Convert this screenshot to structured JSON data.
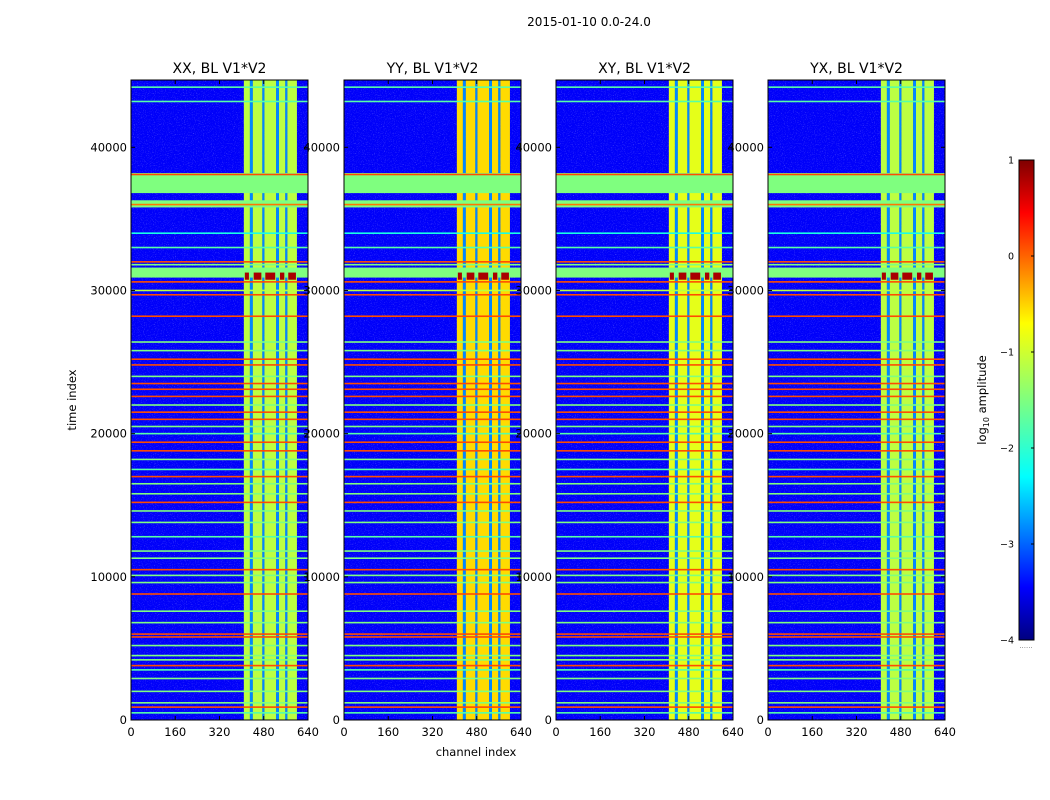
{
  "figure": {
    "suptitle": "2015-01-10 0.0-24.0",
    "xlabel": "channel index",
    "ylabel": "time index",
    "colorbar_label_prefix": "log",
    "colorbar_label_sub": "10",
    "colorbar_label_suffix": " amplitude",
    "colorbar_dots": "......"
  },
  "colors": {
    "colormap": [
      "#00007f",
      "#0000ff",
      "#007fff",
      "#00ffff",
      "#7fff7f",
      "#ffff00",
      "#ff7f00",
      "#ff0000",
      "#7f0000"
    ]
  },
  "chart_data": {
    "type": "heatmap",
    "title": "2015-01-10 0.0-24.0",
    "xlabel": "channel index",
    "ylabel": "time index",
    "xlim": [
      0,
      640
    ],
    "ylim": [
      0,
      44700
    ],
    "xticks": [
      0,
      160,
      320,
      480,
      640
    ],
    "xtick_labels": [
      "0",
      "160",
      "320",
      "480",
      "640"
    ],
    "yticks": [
      0,
      10000,
      20000,
      30000,
      40000
    ],
    "ytick_labels": [
      "0",
      "10000",
      "20000",
      "30000",
      "40000"
    ],
    "colorbar": {
      "range": [
        -4,
        1
      ],
      "ticks": [
        1,
        0,
        -1,
        -2,
        -3,
        -4
      ],
      "tick_labels": [
        "1",
        "0",
        "−1",
        "−2",
        "−3",
        "−4"
      ]
    },
    "panels": [
      {
        "title": "XX, BL V1*V2",
        "background_level": -3.4,
        "band_level": -1.2,
        "peak_level": 0.3
      },
      {
        "title": "YY, BL V1*V2",
        "background_level": -3.4,
        "band_level": -0.7,
        "peak_level": 0.5
      },
      {
        "title": "XY, BL V1*V2",
        "background_level": -3.4,
        "band_level": -1.0,
        "peak_level": 0.3
      },
      {
        "title": "YX, BL V1*V2",
        "background_level": -3.4,
        "band_level": -1.2,
        "peak_level": 0.3
      }
    ],
    "channel_band": {
      "start": 408,
      "end": 600,
      "gaps": [
        [
          430,
          440
        ],
        [
          475,
          482
        ],
        [
          525,
          535
        ],
        [
          558,
          565
        ]
      ]
    },
    "band_starts_at_time": 0,
    "flagged_time_blocks": [
      {
        "start": 36800,
        "end": 38200,
        "level": -1.5
      },
      {
        "start": 35800,
        "end": 36300,
        "level": -1.5
      },
      {
        "start": 30900,
        "end": 31600,
        "level": -1.5
      }
    ],
    "horizontal_lines": [
      {
        "t": 44200,
        "level": -1.7
      },
      {
        "t": 43200,
        "level": -1.7
      },
      {
        "t": 38100,
        "level": 0.0
      },
      {
        "t": 36000,
        "level": -0.2
      },
      {
        "t": 34000,
        "level": -2.0
      },
      {
        "t": 33000,
        "level": -1.7
      },
      {
        "t": 32000,
        "level": 0.0
      },
      {
        "t": 31800,
        "level": -1.5
      },
      {
        "t": 30600,
        "level": 0.0
      },
      {
        "t": 30000,
        "level": -1.2
      },
      {
        "t": 29700,
        "level": 0.0
      },
      {
        "t": 28200,
        "level": 0.0
      },
      {
        "t": 26400,
        "level": -1.5
      },
      {
        "t": 25800,
        "level": -1.5
      },
      {
        "t": 25200,
        "level": 0.0
      },
      {
        "t": 24800,
        "level": 0.0
      },
      {
        "t": 24000,
        "level": -1.5
      },
      {
        "t": 23500,
        "level": 0.0
      },
      {
        "t": 23100,
        "level": 0.0
      },
      {
        "t": 22600,
        "level": 0.0
      },
      {
        "t": 22000,
        "level": -1.5
      },
      {
        "t": 21500,
        "level": 0.0
      },
      {
        "t": 21000,
        "level": 0.0
      },
      {
        "t": 20500,
        "level": -1.5
      },
      {
        "t": 20000,
        "level": -1.7
      },
      {
        "t": 19400,
        "level": 0.0
      },
      {
        "t": 18800,
        "level": 0.0
      },
      {
        "t": 18200,
        "level": -1.5
      },
      {
        "t": 17500,
        "level": -1.7
      },
      {
        "t": 17000,
        "level": 0.0
      },
      {
        "t": 16500,
        "level": -1.5
      },
      {
        "t": 15800,
        "level": -1.5
      },
      {
        "t": 15200,
        "level": 0.0
      },
      {
        "t": 14600,
        "level": -1.5
      },
      {
        "t": 13800,
        "level": -1.5
      },
      {
        "t": 12800,
        "level": -1.7
      },
      {
        "t": 11800,
        "level": -1.5
      },
      {
        "t": 11300,
        "level": -1.5
      },
      {
        "t": 10500,
        "level": 0.0
      },
      {
        "t": 10100,
        "level": -1.5
      },
      {
        "t": 9600,
        "level": -1.5
      },
      {
        "t": 8800,
        "level": 0.0
      },
      {
        "t": 7600,
        "level": -1.5
      },
      {
        "t": 6800,
        "level": -1.5
      },
      {
        "t": 6000,
        "level": 0.0
      },
      {
        "t": 5800,
        "level": 0.0
      },
      {
        "t": 5200,
        "level": -1.5
      },
      {
        "t": 4500,
        "level": -1.5
      },
      {
        "t": 4200,
        "level": -1.5
      },
      {
        "t": 3800,
        "level": 0.0
      },
      {
        "t": 3500,
        "level": -1.7
      },
      {
        "t": 2900,
        "level": -1.5
      },
      {
        "t": 2000,
        "level": -1.5
      },
      {
        "t": 1200,
        "level": -1.5
      },
      {
        "t": 900,
        "level": 0.0
      },
      {
        "t": 500,
        "level": -1.7
      }
    ],
    "hot_blocks_time_range": [
      30750,
      31250
    ],
    "hot_blocks_level": 0.8
  }
}
